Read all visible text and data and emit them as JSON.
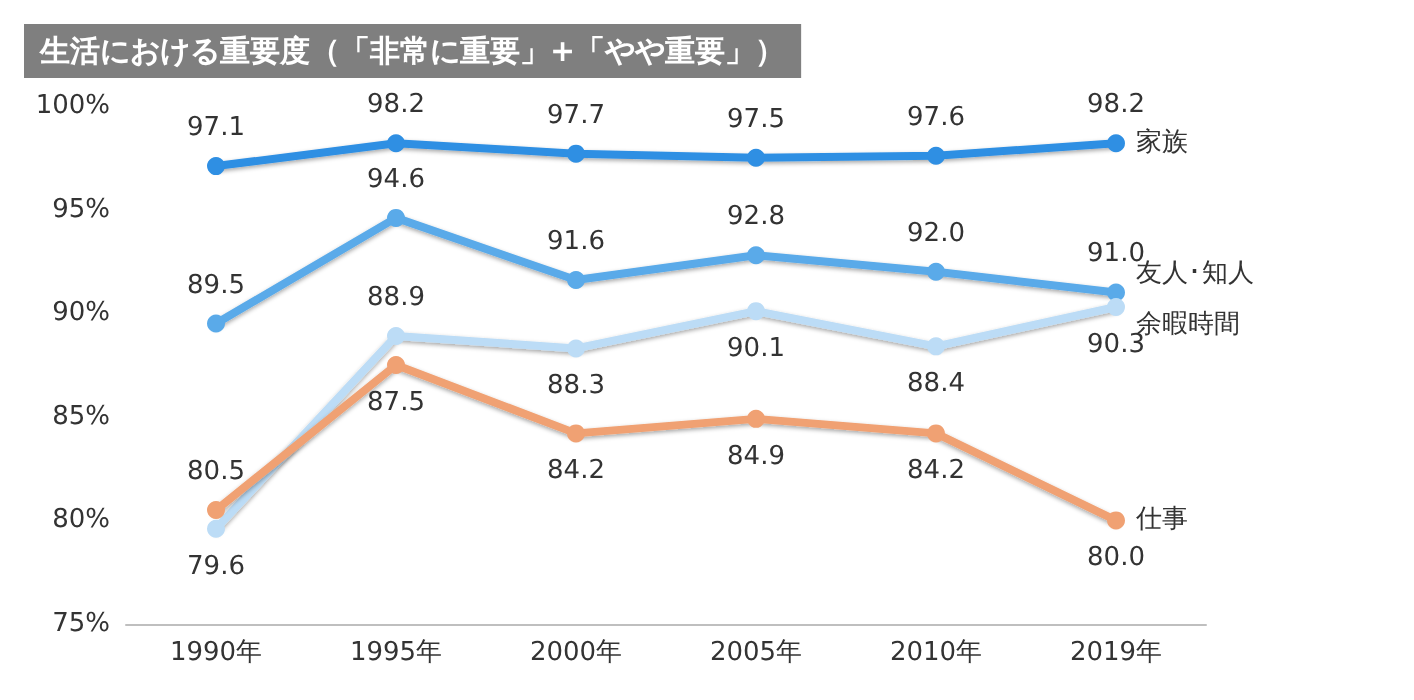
{
  "chart_data": {
    "type": "line",
    "title": "生活における重要度（「非常に重要」+「やや重要」）",
    "categories": [
      "1990年",
      "1995年",
      "2000年",
      "2005年",
      "2010年",
      "2019年"
    ],
    "series": [
      {
        "name": "家族",
        "color": "#2f8fe3",
        "values": [
          97.1,
          98.2,
          97.7,
          97.5,
          97.6,
          98.2
        ],
        "value_labels": [
          "97.1",
          "98.2",
          "97.7",
          "97.5",
          "97.6",
          "98.2"
        ]
      },
      {
        "name": "友人･知人",
        "color": "#5aaae9",
        "values": [
          89.5,
          94.6,
          91.6,
          92.8,
          92.0,
          91.0
        ],
        "value_labels": [
          "89.5",
          "94.6",
          "91.6",
          "92.8",
          "92.0",
          "91.0"
        ]
      },
      {
        "name": "余暇時間",
        "color": "#bcdcf6",
        "values": [
          79.6,
          88.9,
          88.3,
          90.1,
          88.4,
          90.3
        ],
        "value_labels": [
          "79.6",
          "88.9",
          "88.3",
          "90.1",
          "88.4",
          "90.3"
        ]
      },
      {
        "name": "仕事",
        "color": "#f0a173",
        "values": [
          80.5,
          87.5,
          84.2,
          84.9,
          84.2,
          80.0
        ],
        "value_labels": [
          "80.5",
          "87.5",
          "84.2",
          "84.9",
          "84.2",
          "80.0"
        ]
      }
    ],
    "ylim": [
      75,
      100
    ],
    "yticks": [
      {
        "value": 75,
        "label": "75%"
      },
      {
        "value": 80,
        "label": "80%"
      },
      {
        "value": 85,
        "label": "85%"
      },
      {
        "value": 90,
        "label": "90%"
      },
      {
        "value": 95,
        "label": "95%"
      },
      {
        "value": 100,
        "label": "100%"
      }
    ],
    "grid": false,
    "legend": false,
    "marker": "circle",
    "line_style": "solid"
  }
}
